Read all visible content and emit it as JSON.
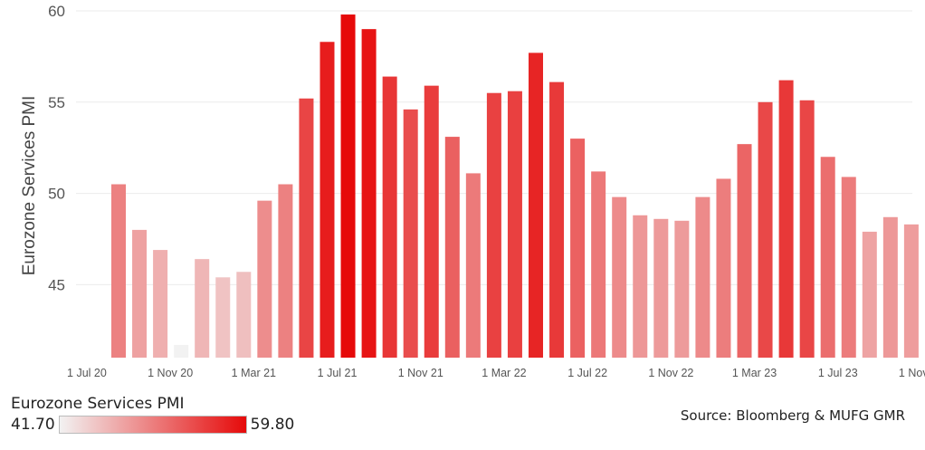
{
  "chart_data": {
    "type": "bar",
    "ylabel": "Eurozone Services PMI",
    "ylim": [
      41,
      60
    ],
    "yticks": [
      45,
      50,
      55,
      60
    ],
    "x_tick_labels": [
      "1 Jul 20",
      "1 Nov 20",
      "1 Mar 21",
      "1 Jul 21",
      "1 Nov 21",
      "1 Mar 22",
      "1 Jul 22",
      "1 Nov 22",
      "1 Mar 23",
      "1 Jul 23",
      "1 Nov 23"
    ],
    "categories": [
      "Aug 20",
      "Sep 20",
      "Oct 20",
      "Nov 20",
      "Dec 20",
      "Jan 21",
      "Feb 21",
      "Mar 21",
      "Apr 21",
      "May 21",
      "Jun 21",
      "Jul 21",
      "Aug 21",
      "Sep 21",
      "Oct 21",
      "Nov 21",
      "Dec 21",
      "Jan 22",
      "Feb 22",
      "Mar 22",
      "Apr 22",
      "May 22",
      "Jun 22",
      "Jul 22",
      "Aug 22",
      "Sep 22",
      "Oct 22",
      "Nov 22",
      "Dec 22",
      "Jan 23",
      "Feb 23",
      "Mar 23",
      "Apr 23",
      "May 23",
      "Jun 23",
      "Jul 23",
      "Aug 23",
      "Sep 23",
      "Oct 23"
    ],
    "values": [
      50.5,
      48.0,
      46.9,
      41.7,
      46.4,
      45.4,
      45.7,
      49.6,
      50.5,
      55.2,
      58.3,
      59.8,
      59.0,
      56.4,
      54.6,
      55.9,
      53.1,
      51.1,
      55.5,
      55.6,
      57.7,
      56.1,
      53.0,
      51.2,
      49.8,
      48.8,
      48.6,
      48.5,
      49.8,
      50.8,
      52.7,
      55.0,
      56.2,
      55.1,
      52.0,
      50.9,
      47.9,
      48.7,
      48.3
    ],
    "color_scale": {
      "min": 41.7,
      "max": 59.8,
      "min_color": "#f2f2f2",
      "max_color": "#e60a0a"
    },
    "grid": true
  },
  "legend": {
    "title": "Eurozone Services PMI",
    "min_label": "41.70",
    "max_label": "59.80"
  },
  "source": "Source: Bloomberg & MUFG GMR"
}
